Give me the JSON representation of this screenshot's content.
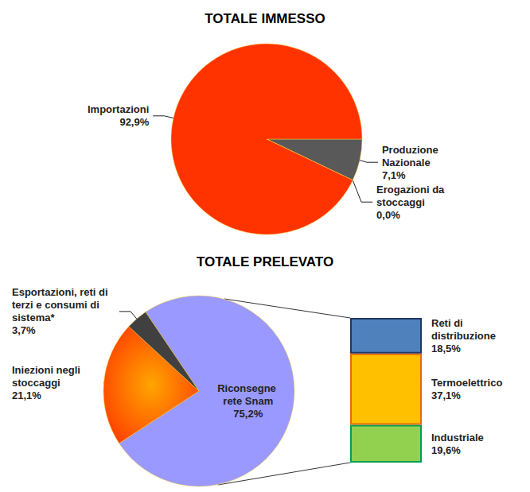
{
  "chart_data": [
    {
      "type": "pie",
      "title": "TOTALE IMMESSO",
      "categories": [
        "Produzione Nazionale",
        "Erogazioni da stoccaggi",
        "Importazioni"
      ],
      "values": [
        7.1,
        0.0,
        92.9
      ],
      "value_labels": [
        "7,1%",
        "0,0%",
        "92,9%"
      ],
      "colors": [
        "#595959",
        "#ffc000",
        "#ff3300"
      ],
      "data_labels": true
    },
    {
      "type": "pie",
      "title": "TOTALE PRELEVATO",
      "categories": [
        "Riconsegne rete Snam",
        "Iniezioni negli stoccaggi",
        "Esportazioni, reti di terzi e consumi di sistema*"
      ],
      "values": [
        75.2,
        21.1,
        3.7
      ],
      "value_labels": [
        "75,2%",
        "21,1%",
        "3,7%"
      ],
      "colors": [
        "#9999ff",
        "#ff4000",
        "#404040"
      ],
      "data_labels": true
    },
    {
      "type": "bar",
      "stacked": true,
      "categories": [
        null
      ],
      "tick_labels": false,
      "data_labels": true,
      "series": [
        {
          "name": "Industriale",
          "color": "#92d050",
          "values": [
            19.6
          ],
          "value_labels": [
            "19,6%"
          ]
        },
        {
          "name": "Termoelettrico",
          "color": "#ffc000",
          "values": [
            37.1
          ],
          "value_labels": [
            "37,1%"
          ]
        },
        {
          "name": "Reti di distribuzione",
          "color": "#4f81bd",
          "values": [
            18.5
          ],
          "value_labels": [
            "18,5%"
          ]
        }
      ]
    }
  ]
}
